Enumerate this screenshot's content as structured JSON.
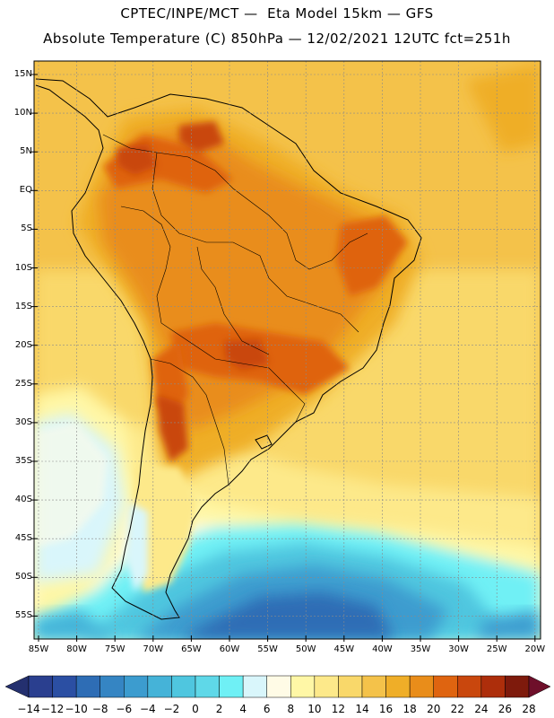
{
  "header": {
    "line1": "CPTEC/INPE/MCT —  Eta Model 15km — GFS",
    "line2": "Absolute Temperature (C) 850hPa — 12/02/2021 12UTC fct=251h"
  },
  "map": {
    "lat_labels": [
      "15N",
      "10N",
      "5N",
      "EQ",
      "5S",
      "10S",
      "15S",
      "20S",
      "25S",
      "30S",
      "35S",
      "40S",
      "45S",
      "50S",
      "55S"
    ],
    "lon_labels": [
      "85W",
      "80W",
      "75W",
      "70W",
      "65W",
      "60W",
      "55W",
      "50W",
      "45W",
      "40W",
      "35W",
      "30W",
      "25W",
      "20W"
    ]
  },
  "colorbar": {
    "labels": [
      "-14",
      "-12",
      "-10",
      "-8",
      "-6",
      "-4",
      "-2",
      "0",
      "2",
      "4",
      "6",
      "8",
      "10",
      "12",
      "14",
      "16",
      "18",
      "20",
      "22",
      "24",
      "26",
      "28"
    ],
    "colors": [
      "#2a3f8f",
      "#2b4fa3",
      "#2e6db5",
      "#3585c3",
      "#3c9ccf",
      "#45b3d8",
      "#4fc6df",
      "#5fd8e8",
      "#6ff0f5",
      "#d9f6fb",
      "#fffbe6",
      "#fff7a6",
      "#fde98a",
      "#f9d86a",
      "#f4c24a",
      "#efae28",
      "#e98d1a",
      "#df6410",
      "#c9470d",
      "#ad2e0b",
      "#7e1a0c"
    ]
  }
}
